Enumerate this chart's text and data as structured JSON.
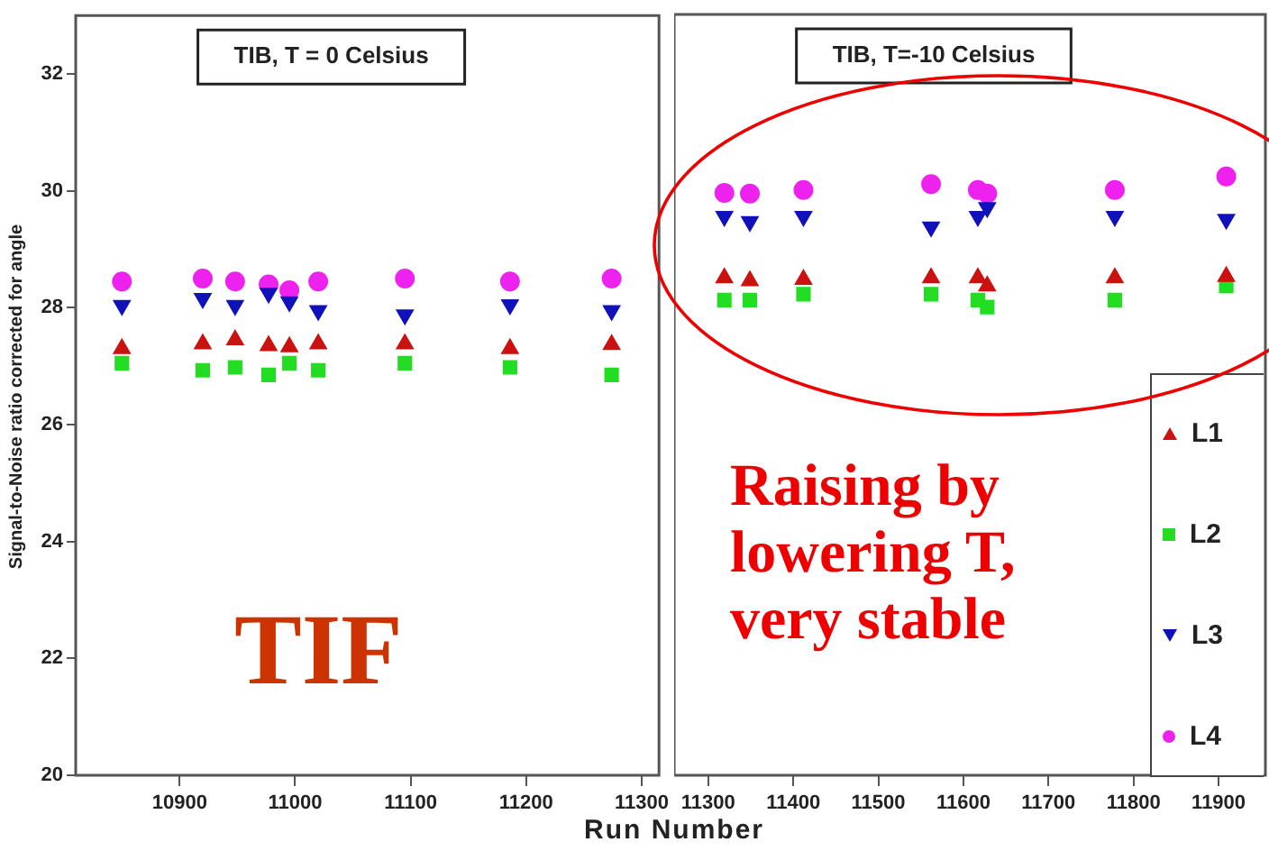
{
  "chart_data": [
    {
      "type": "scatter",
      "title": "TIB, T = 0 Celsius",
      "ylabel": "Signal-to-Noise ratio corrected for angle",
      "xlabel": "Run Number",
      "xlim": [
        10810,
        11315
      ],
      "xticks": [
        10900,
        11000,
        11100,
        11200,
        11300
      ],
      "ylim": [
        20,
        33
      ],
      "yticks": [
        20,
        22,
        24,
        26,
        28,
        30,
        32
      ],
      "legend": false,
      "annotations": [
        "TIF"
      ],
      "x": [
        10850,
        10920,
        10948,
        10977,
        10995,
        11020,
        11095,
        11186,
        11274
      ],
      "series": [
        {
          "color": "#cc1111",
          "marker": "triangle",
          "values": [
            27.3,
            27.38,
            27.45,
            27.35,
            27.33,
            27.38,
            27.38,
            27.3,
            27.37
          ]
        },
        {
          "color": "#22dd22",
          "marker": "square",
          "values": [
            27.05,
            26.93,
            26.98,
            26.85,
            27.05,
            26.93,
            27.05,
            26.98,
            26.85
          ]
        },
        {
          "color": "#1111bb",
          "marker": "triangle_down",
          "values": [
            28.04,
            28.16,
            28.04,
            28.25,
            28.1,
            27.95,
            27.88,
            28.05,
            27.95
          ]
        },
        {
          "color": "#ee22ee",
          "marker": "circle",
          "values": [
            28.45,
            28.5,
            28.45,
            28.4,
            28.3,
            28.45,
            28.5,
            28.45,
            28.5
          ]
        }
      ]
    },
    {
      "type": "scatter",
      "title": "TIB, T=-10 Celsius",
      "xlim": [
        11260,
        11955
      ],
      "xticks": [
        11300,
        11400,
        11500,
        11600,
        11700,
        11800,
        11900
      ],
      "ylim": [
        20,
        33
      ],
      "yticks": [
        20,
        22,
        24,
        26,
        28,
        30,
        32
      ],
      "tick_labels": "x",
      "legend": "bottom right",
      "annotations": [
        "Raising by lowering T, very stable"
      ],
      "x": [
        11319,
        11349,
        11412,
        11562,
        11617,
        11628,
        11778,
        11909
      ],
      "series": [
        {
          "name": "L1",
          "color": "#cc1111",
          "marker": "triangle",
          "values": [
            28.5,
            28.45,
            28.47,
            28.5,
            28.5,
            28.36,
            28.5,
            28.52
          ]
        },
        {
          "name": "L2",
          "color": "#22dd22",
          "marker": "square",
          "values": [
            28.12,
            28.12,
            28.22,
            28.22,
            28.12,
            28.0,
            28.12,
            28.36
          ]
        },
        {
          "name": "L3",
          "color": "#1111bb",
          "marker": "triangle_down",
          "values": [
            29.55,
            29.46,
            29.55,
            29.37,
            29.55,
            29.7,
            29.55,
            29.5
          ]
        },
        {
          "name": "L4",
          "color": "#ee22ee",
          "marker": "circle",
          "values": [
            29.95,
            29.94,
            30.0,
            30.1,
            30.0,
            29.94,
            30.0,
            30.23
          ]
        }
      ]
    }
  ]
}
